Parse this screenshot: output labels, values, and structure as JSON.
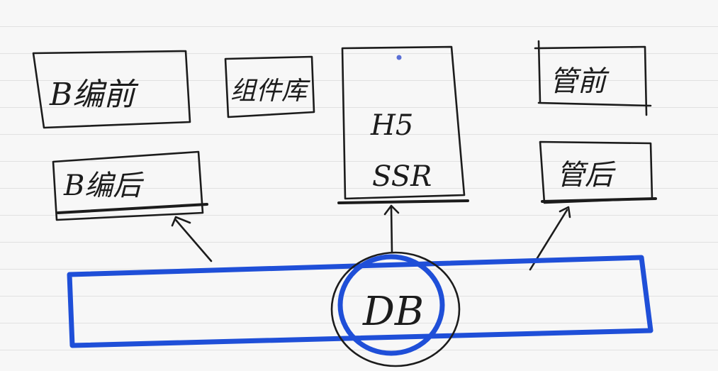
{
  "nodes": {
    "b_edit_front": "B编前",
    "component_lib": "组件库",
    "h5": "H5",
    "ssr": "SSR",
    "admin_front": "管前",
    "b_edit_back": "B编后",
    "admin_back": "管后",
    "db": "DB"
  },
  "colors": {
    "ink": "#1c1c1c",
    "db_highlight": "#1f4fd8"
  }
}
